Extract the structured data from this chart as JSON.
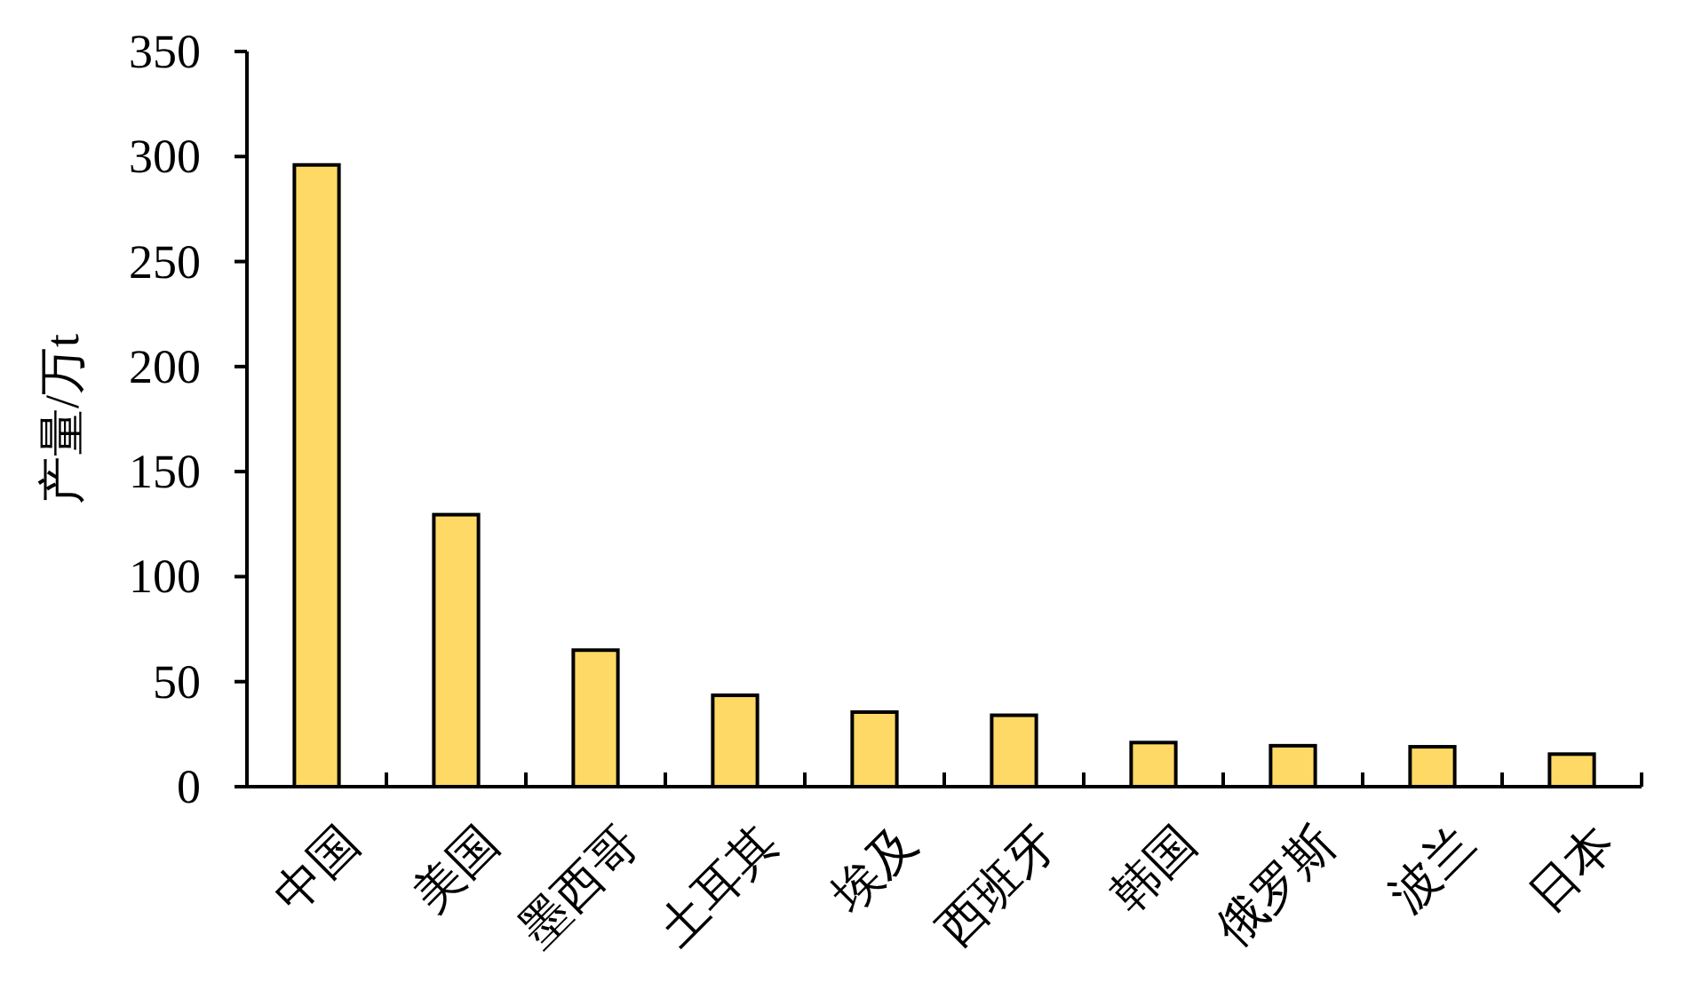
{
  "chart_data": {
    "type": "bar",
    "ylabel": "产量/万t",
    "categories": [
      "中国",
      "美国",
      "墨西哥",
      "土耳其",
      "埃及",
      "西班牙",
      "韩国",
      "俄罗斯",
      "波兰",
      "日本"
    ],
    "values": [
      296,
      129.5,
      65,
      43.5,
      35.5,
      34,
      21,
      19.5,
      19,
      15.5
    ],
    "color": "#ffd966",
    "ylim": [
      0,
      350
    ],
    "yticks": [
      0,
      50,
      100,
      150,
      200,
      250,
      300,
      350
    ],
    "grid": false
  }
}
